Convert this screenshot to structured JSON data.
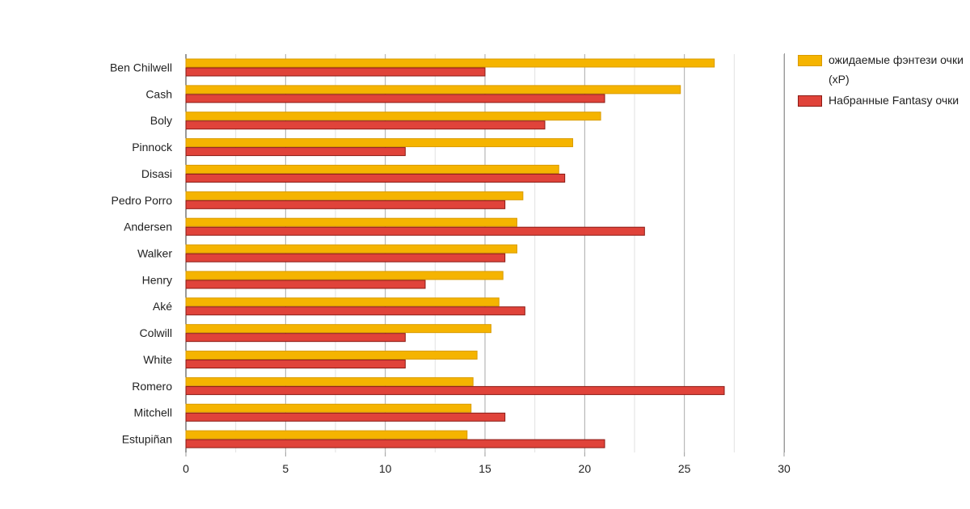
{
  "chart_data": {
    "type": "bar",
    "orientation": "horizontal",
    "title": "",
    "xlabel": "",
    "ylabel": "",
    "xlim": [
      0,
      30
    ],
    "xticks": [
      0,
      5,
      10,
      15,
      20,
      25,
      30
    ],
    "grid": true,
    "legend_position": "right",
    "categories": [
      "Ben Chilwell",
      "Cash",
      "Boly",
      "Pinnock",
      "Disasi",
      "Pedro Porro",
      "Andersen",
      "Walker",
      "Henry",
      "Aké",
      "Colwill",
      "White",
      "Romero",
      "Mitchell",
      "Estupiñan"
    ],
    "series": [
      {
        "name": "ожидаемые фэнтези очки (xP)",
        "color": "#f5b400",
        "border": "#d99b00",
        "values": [
          26.5,
          24.8,
          20.8,
          19.4,
          18.7,
          16.9,
          16.6,
          16.6,
          15.9,
          15.7,
          15.3,
          14.6,
          14.4,
          14.3,
          14.1
        ]
      },
      {
        "name": "Набранные Fantasy очки",
        "color": "#e0433a",
        "border": "#8a1a14",
        "values": [
          15,
          21,
          18,
          11,
          19,
          16,
          23,
          16,
          12,
          17,
          11,
          11,
          27,
          16,
          21
        ]
      }
    ]
  }
}
